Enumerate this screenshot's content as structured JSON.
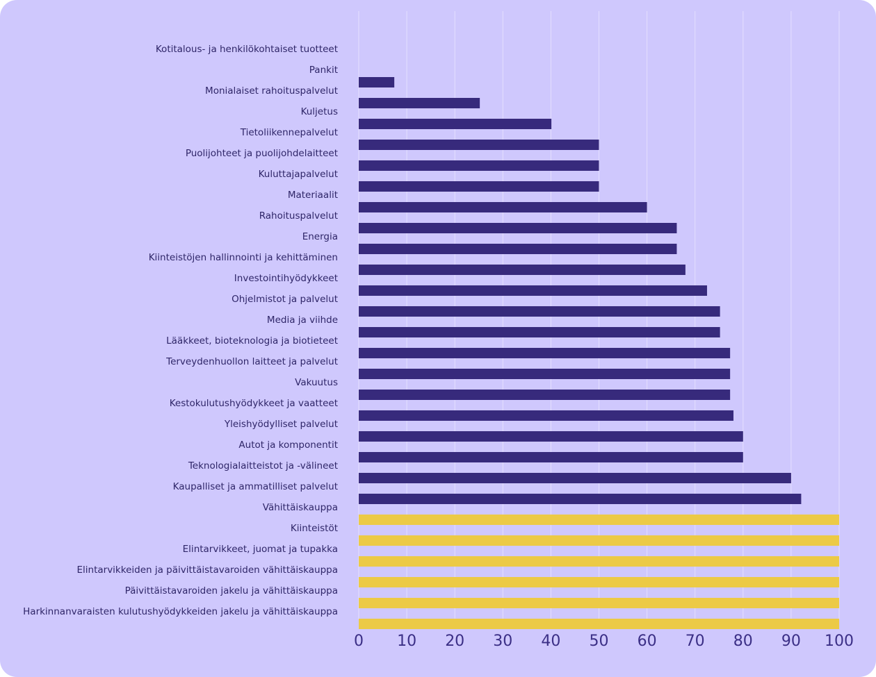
{
  "chart_data": {
    "type": "bar",
    "orientation": "horizontal",
    "categories": [
      "Kotitalous- ja henkilökohtaiset tuotteet",
      "Pankit",
      "Monialaiset rahoituspalvelut",
      "Kuljetus",
      "Tietoliikennepalvelut",
      "Puolijohteet ja puolijohdelaitteet",
      "Kuluttajapalvelut",
      "Materiaalit",
      "Rahoituspalvelut",
      "Energia",
      "Kiinteistöjen hallinnointi ja kehittäminen",
      "Investointihyödykkeet",
      "Ohjelmistot ja palvelut",
      "Media ja viihde",
      "Lääkkeet, bioteknologia ja biotieteet",
      "Terveydenhuollon laitteet ja palvelut",
      "Vakuutus",
      "Kestokulutushyödykkeet ja vaatteet",
      "Yleishyödylliset palvelut",
      "Autot ja komponentit",
      "Teknologialaitteistot ja -välineet",
      "Kaupalliset ja ammatilliset palvelut",
      "Vähittäiskauppa",
      "Kiinteistöt",
      "Elintarvikkeet, juomat ja tupakka",
      "Elintarvikkeiden ja päivittäistavaroiden vähittäiskauppa",
      "Päivittäistavaroiden jakelu ja vähittäiskauppa",
      "Harkinnanvaraisten kulutushyödykkeiden jakelu ja vähittäiskauppa"
    ],
    "values": [
      0,
      7.4,
      25.2,
      40.1,
      50,
      50,
      50,
      60,
      66.2,
      66.2,
      68,
      72.5,
      75.2,
      75.2,
      77.3,
      77.3,
      77.3,
      78,
      80,
      80,
      90,
      92.1,
      100,
      100,
      100,
      100,
      100,
      100
    ],
    "highlight": [
      false,
      false,
      false,
      false,
      false,
      false,
      false,
      false,
      false,
      false,
      false,
      false,
      false,
      false,
      false,
      false,
      false,
      false,
      false,
      false,
      false,
      false,
      true,
      true,
      true,
      true,
      true,
      true
    ],
    "colors": {
      "bar": "#372a7c",
      "highlight": "#ecca46",
      "grid": "#e9e5ff"
    },
    "xlim": [
      0,
      100
    ],
    "xticks": [
      "0",
      "10",
      "20",
      "30",
      "40",
      "50",
      "60",
      "70",
      "80",
      "90",
      "100"
    ],
    "grid": true,
    "title": "",
    "xlabel": "",
    "ylabel": ""
  }
}
